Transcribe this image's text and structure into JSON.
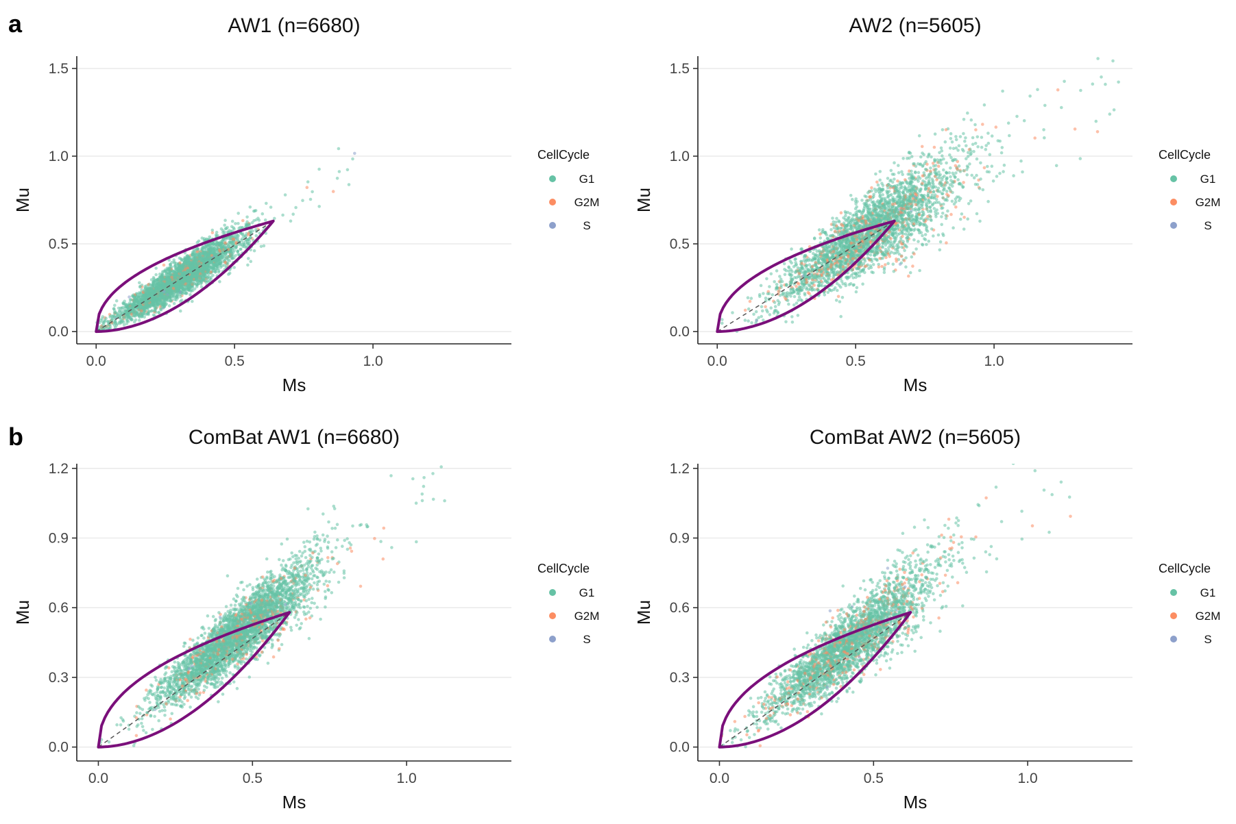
{
  "colors": {
    "G1": "#66c2a5",
    "G2M": "#fc8d62",
    "S": "#8da0cb",
    "boundary": "#800080"
  },
  "chart_data": [
    {
      "type": "scatter",
      "panel_letter": "a",
      "title": "AW1 (n=6680)",
      "xlabel": "Ms",
      "ylabel": "Mu",
      "xlim": [
        -0.07,
        1.5
      ],
      "ylim": [
        -0.07,
        1.57
      ],
      "xticks": [
        0,
        0.5,
        1
      ],
      "xtick_labels": [
        "0.0",
        "0.5",
        "1.0"
      ],
      "yticks": [
        0,
        0.5,
        1,
        1.5
      ],
      "ytick_labels": [
        "0.0",
        "0.5",
        "1.0",
        "1.5"
      ],
      "grid": "horizontal",
      "n": 6680,
      "cloud": {
        "slope": 1.0,
        "x_center": 0.3,
        "x_spread": 0.15,
        "x_max": 0.95,
        "noise": 0.06,
        "outlier_frac": 0.02,
        "g2m_frac": 0.06
      },
      "boundary_curve": {
        "x_end": 0.64,
        "y_end": 0.63
      },
      "legend": {
        "title": "CellCycle",
        "placement": "right",
        "entries": [
          "G1",
          "G2M",
          "S"
        ]
      }
    },
    {
      "type": "scatter",
      "panel_letter": "",
      "title": "AW2 (n=5605)",
      "xlabel": "Ms",
      "ylabel": "Mu",
      "xlim": [
        -0.07,
        1.5
      ],
      "ylim": [
        -0.07,
        1.57
      ],
      "xticks": [
        0,
        0.5,
        1
      ],
      "xtick_labels": [
        "0.0",
        "0.5",
        "1.0"
      ],
      "yticks": [
        0,
        0.5,
        1,
        1.5
      ],
      "ytick_labels": [
        "0.0",
        "0.5",
        "1.0",
        "1.5"
      ],
      "grid": "horizontal",
      "n": 5605,
      "cloud": {
        "slope": 1.02,
        "x_center": 0.55,
        "x_spread": 0.22,
        "x_max": 1.45,
        "noise": 0.1,
        "outlier_frac": 0.03,
        "g2m_frac": 0.14
      },
      "boundary_curve": {
        "x_end": 0.64,
        "y_end": 0.63
      },
      "legend": {
        "title": "CellCycle",
        "placement": "right",
        "entries": [
          "G1",
          "G2M",
          "S"
        ]
      }
    },
    {
      "type": "scatter",
      "panel_letter": "b",
      "title": "ComBat AW1 (n=6680)",
      "xlabel": "Ms",
      "ylabel": "Mu",
      "xlim": [
        -0.07,
        1.34
      ],
      "ylim": [
        -0.06,
        1.22
      ],
      "xticks": [
        0,
        0.5,
        1
      ],
      "xtick_labels": [
        "0.0",
        "0.5",
        "1.0"
      ],
      "yticks": [
        0,
        0.3,
        0.6,
        0.9,
        1.2
      ],
      "ytick_labels": [
        "0.0",
        "0.3",
        "0.6",
        "0.9",
        "1.2"
      ],
      "grid": "horizontal",
      "n": 6680,
      "cloud": {
        "slope": 1.08,
        "x_center": 0.45,
        "x_spread": 0.17,
        "x_max": 1.13,
        "noise": 0.07,
        "outlier_frac": 0.02,
        "g2m_frac": 0.07
      },
      "boundary_curve": {
        "x_end": 0.62,
        "y_end": 0.58
      },
      "legend": {
        "title": "CellCycle",
        "placement": "right",
        "entries": [
          "G1",
          "G2M",
          "S"
        ]
      }
    },
    {
      "type": "scatter",
      "panel_letter": "",
      "title": "ComBat AW2 (n=5605)",
      "xlabel": "Ms",
      "ylabel": "Mu",
      "xlim": [
        -0.07,
        1.34
      ],
      "ylim": [
        -0.06,
        1.22
      ],
      "xticks": [
        0,
        0.5,
        1
      ],
      "xtick_labels": [
        "0.0",
        "0.5",
        "1.0"
      ],
      "yticks": [
        0,
        0.3,
        0.6,
        0.9,
        1.2
      ],
      "ytick_labels": [
        "0.0",
        "0.3",
        "0.6",
        "0.9",
        "1.2"
      ],
      "grid": "horizontal",
      "n": 5605,
      "cloud": {
        "slope": 1.05,
        "x_center": 0.42,
        "x_spread": 0.18,
        "x_max": 1.2,
        "noise": 0.08,
        "outlier_frac": 0.03,
        "g2m_frac": 0.12
      },
      "boundary_curve": {
        "x_end": 0.62,
        "y_end": 0.58
      },
      "legend": {
        "title": "CellCycle",
        "placement": "right",
        "entries": [
          "G1",
          "G2M",
          "S"
        ]
      }
    }
  ]
}
